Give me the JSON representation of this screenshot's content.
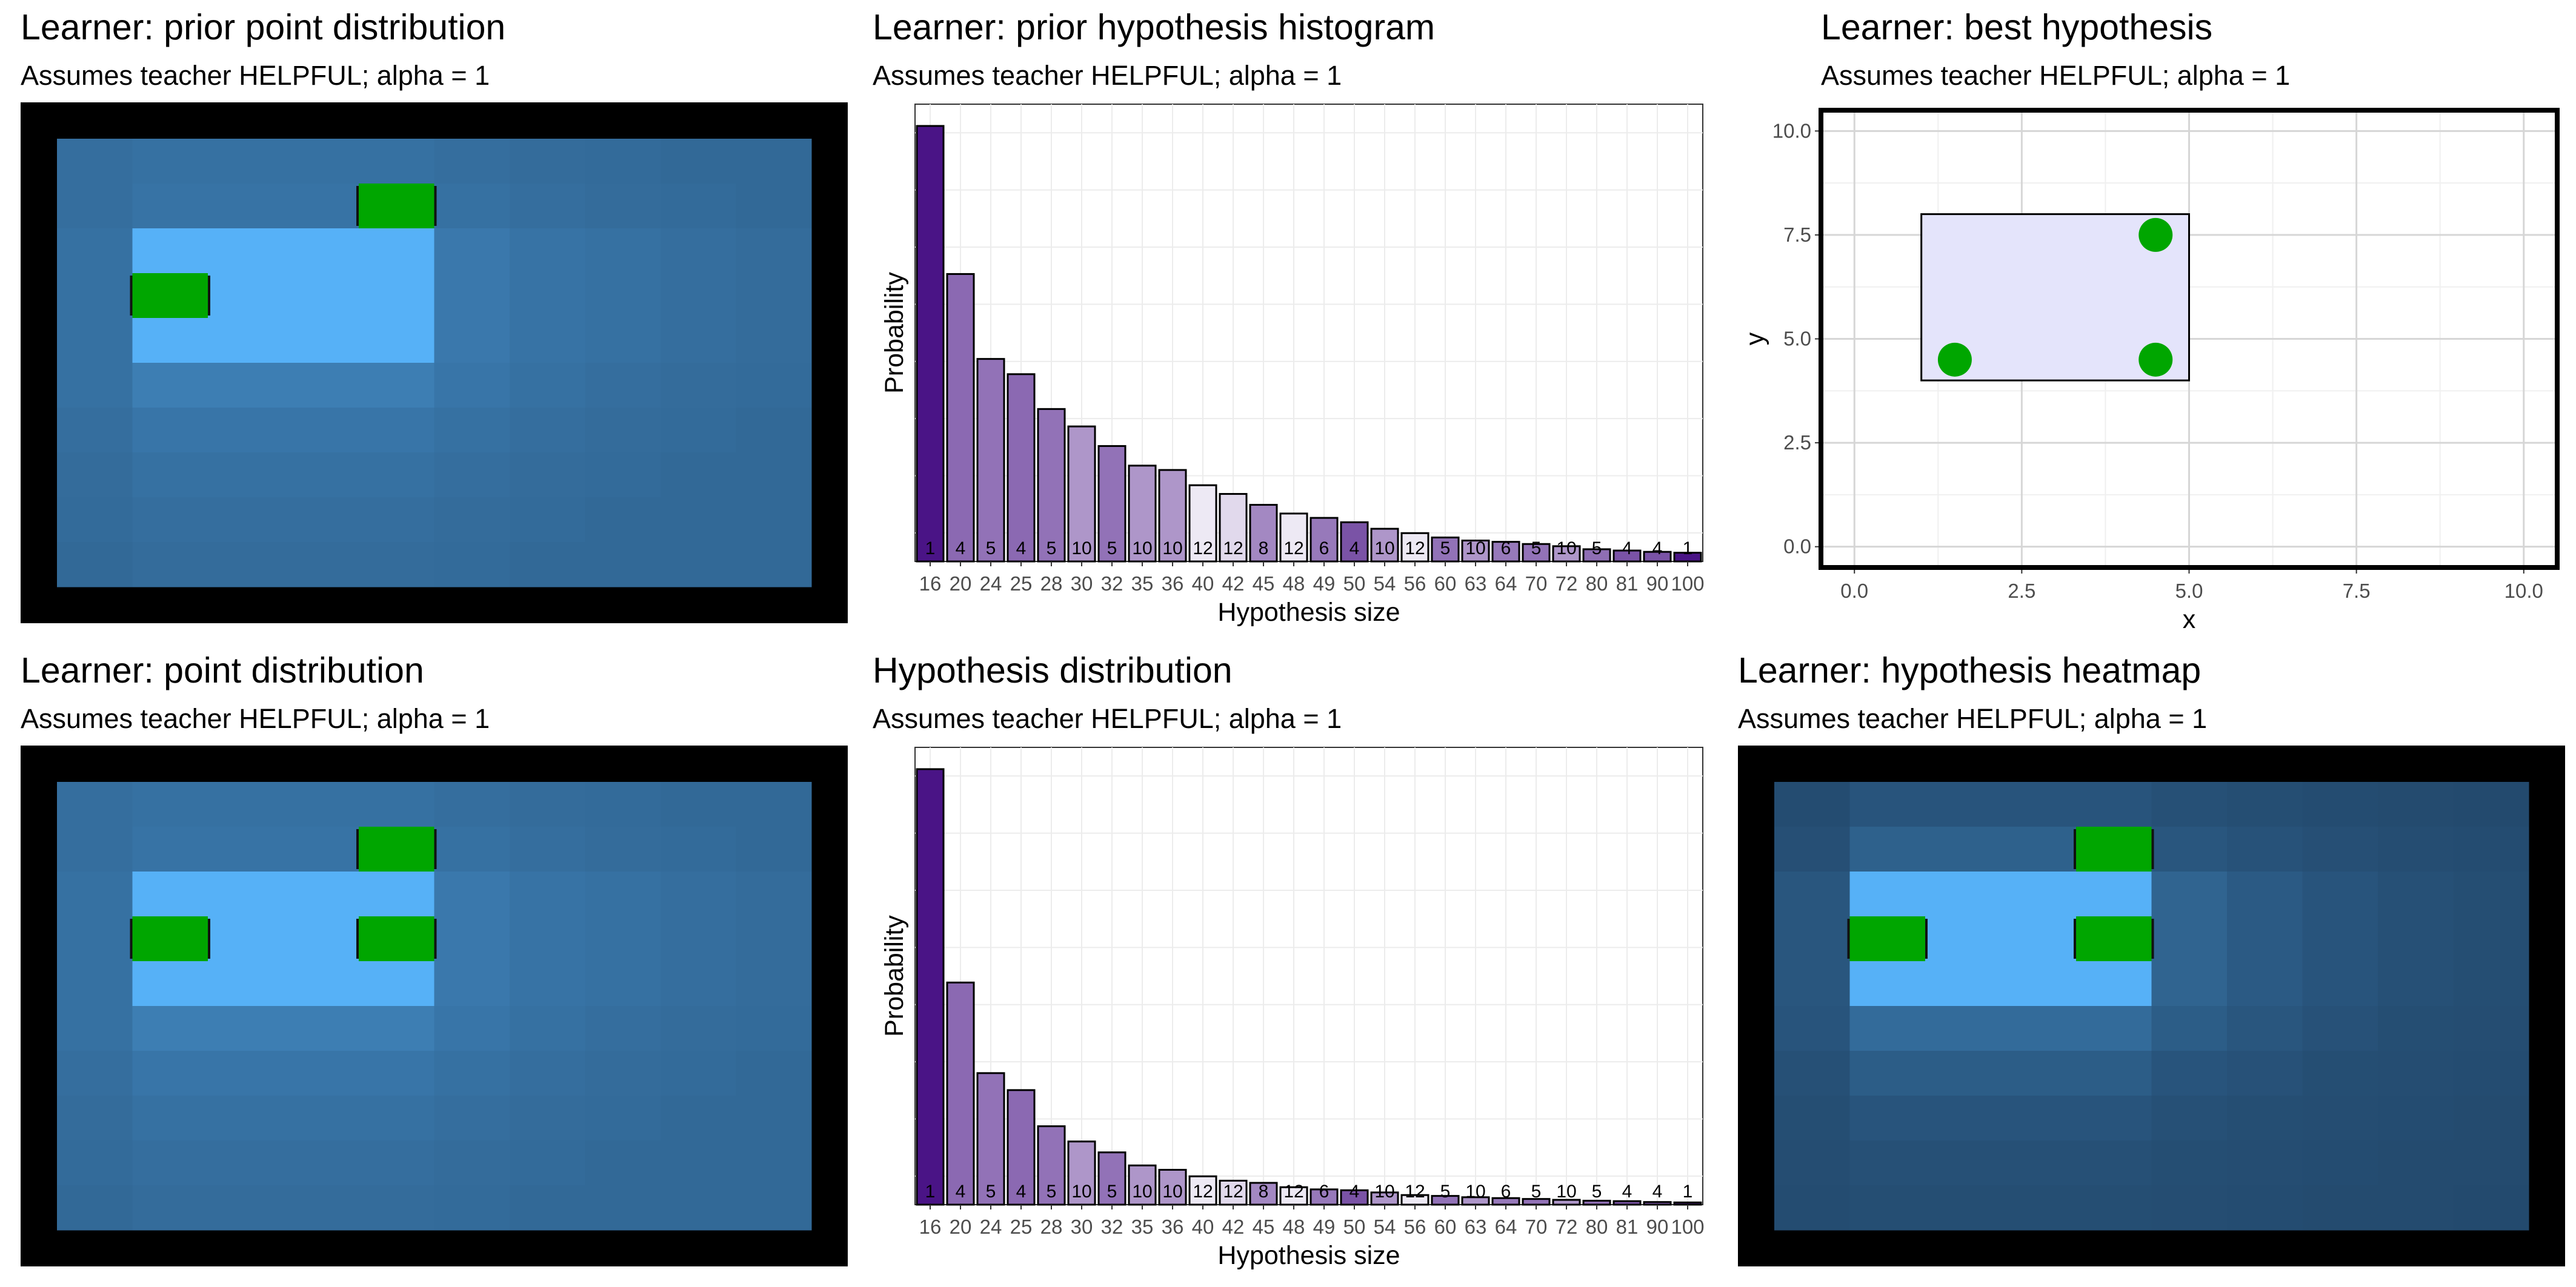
{
  "colors": {
    "heat_low": "#234a6e",
    "heat_high": "#56b1f7",
    "point": "#00a600",
    "bar_low": "#f6f4fa",
    "bar_high": "#4a1486",
    "rect_fill": "#e4e4fb",
    "frame": "#000000"
  },
  "panels": {
    "p1": {
      "title": "Learner: prior point distribution",
      "subtitle": "Assumes teacher HELPFUL; alpha = 1"
    },
    "p2": {
      "title": "Learner: prior hypothesis histogram",
      "subtitle": "Assumes teacher HELPFUL; alpha = 1"
    },
    "p3": {
      "title": "Learner: best hypothesis",
      "subtitle": "Assumes teacher HELPFUL; alpha = 1"
    },
    "p4": {
      "title": "Learner: point distribution",
      "subtitle": "Assumes teacher HELPFUL; alpha = 1"
    },
    "p5": {
      "title": "Hypothesis distribution",
      "subtitle": "Assumes teacher HELPFUL; alpha = 1"
    },
    "p6": {
      "title": "Learner: hypothesis heatmap",
      "subtitle": "Assumes teacher HELPFUL; alpha = 1"
    }
  },
  "chart_data": [
    {
      "id": "p1",
      "type": "heatmap",
      "title": "Learner: prior point distribution",
      "subtitle": "Assumes teacher HELPFUL; alpha = 1",
      "grid_size": [
        10,
        10
      ],
      "scale": [
        0,
        1
      ],
      "values": [
        [
          0.35,
          0.38,
          0.38,
          0.38,
          0.38,
          0.35,
          0.33,
          0.32,
          0.3,
          0.3
        ],
        [
          0.35,
          0.4,
          0.4,
          0.4,
          0.4,
          0.38,
          0.35,
          0.33,
          0.32,
          0.3
        ],
        [
          0.38,
          1.0,
          1.0,
          1.0,
          1.0,
          0.45,
          0.4,
          0.38,
          0.35,
          0.33
        ],
        [
          0.38,
          1.0,
          1.0,
          1.0,
          1.0,
          0.45,
          0.4,
          0.38,
          0.35,
          0.33
        ],
        [
          0.38,
          1.0,
          1.0,
          1.0,
          1.0,
          0.45,
          0.4,
          0.38,
          0.35,
          0.33
        ],
        [
          0.38,
          0.5,
          0.5,
          0.5,
          0.5,
          0.42,
          0.38,
          0.35,
          0.33,
          0.32
        ],
        [
          0.35,
          0.42,
          0.42,
          0.42,
          0.42,
          0.38,
          0.35,
          0.33,
          0.32,
          0.3
        ],
        [
          0.33,
          0.38,
          0.38,
          0.38,
          0.38,
          0.35,
          0.33,
          0.32,
          0.3,
          0.3
        ],
        [
          0.32,
          0.35,
          0.35,
          0.35,
          0.35,
          0.33,
          0.32,
          0.3,
          0.3,
          0.3
        ],
        [
          0.3,
          0.33,
          0.33,
          0.33,
          0.33,
          0.32,
          0.3,
          0.3,
          0.3,
          0.3
        ]
      ],
      "points": [
        {
          "col": 1,
          "row": 3
        },
        {
          "col": 4,
          "row": 1
        }
      ]
    },
    {
      "id": "p2",
      "type": "bar",
      "title": "Learner: prior hypothesis histogram",
      "subtitle": "Assumes teacher HELPFUL; alpha = 1",
      "xlabel": "Hypothesis size",
      "ylabel": "Probability",
      "categories": [
        "16",
        "20",
        "24",
        "25",
        "28",
        "30",
        "32",
        "35",
        "36",
        "40",
        "42",
        "45",
        "48",
        "49",
        "50",
        "54",
        "56",
        "60",
        "63",
        "64",
        "70",
        "72",
        "80",
        "81",
        "90",
        "100"
      ],
      "counts": [
        1,
        4,
        5,
        4,
        5,
        10,
        5,
        10,
        10,
        12,
        12,
        8,
        12,
        6,
        4,
        10,
        12,
        5,
        10,
        6,
        5,
        10,
        5,
        4,
        4,
        1
      ],
      "values": [
        1.0,
        0.66,
        0.465,
        0.43,
        0.35,
        0.31,
        0.265,
        0.22,
        0.21,
        0.175,
        0.155,
        0.13,
        0.11,
        0.1,
        0.09,
        0.075,
        0.065,
        0.055,
        0.048,
        0.045,
        0.04,
        0.035,
        0.028,
        0.025,
        0.022,
        0.02
      ],
      "fill_level": [
        1.0,
        0.62,
        0.58,
        0.62,
        0.58,
        0.42,
        0.58,
        0.42,
        0.42,
        0.05,
        0.12,
        0.48,
        0.05,
        0.55,
        0.72,
        0.42,
        0.05,
        0.58,
        0.42,
        0.55,
        0.58,
        0.42,
        0.6,
        0.72,
        0.72,
        1.0
      ],
      "ylim": [
        0,
        1.05
      ]
    },
    {
      "id": "p3",
      "type": "scatter",
      "title": "Learner: best hypothesis",
      "subtitle": "Assumes teacher HELPFUL; alpha = 1",
      "xlabel": "x",
      "ylabel": "y",
      "xlim": [
        -0.5,
        10.5
      ],
      "ylim": [
        -0.5,
        10.5
      ],
      "x_ticks": [
        "0.0",
        "2.5",
        "5.0",
        "7.5",
        "10.0"
      ],
      "y_ticks": [
        "0.0",
        "2.5",
        "5.0",
        "7.5",
        "10.0"
      ],
      "rectangle": {
        "xmin": 1,
        "xmax": 5,
        "ymin": 4,
        "ymax": 8
      },
      "points": [
        {
          "x": 4.5,
          "y": 7.5
        },
        {
          "x": 1.5,
          "y": 4.5
        },
        {
          "x": 4.5,
          "y": 4.5
        }
      ]
    },
    {
      "id": "p4",
      "type": "heatmap",
      "title": "Learner: point distribution",
      "subtitle": "Assumes teacher HELPFUL; alpha = 1",
      "grid_size": [
        10,
        10
      ],
      "scale": [
        0,
        1
      ],
      "values": [
        [
          0.35,
          0.38,
          0.38,
          0.38,
          0.38,
          0.35,
          0.33,
          0.32,
          0.3,
          0.3
        ],
        [
          0.35,
          0.4,
          0.4,
          0.4,
          0.4,
          0.38,
          0.35,
          0.33,
          0.32,
          0.3
        ],
        [
          0.38,
          1.0,
          1.0,
          1.0,
          1.0,
          0.45,
          0.4,
          0.38,
          0.35,
          0.33
        ],
        [
          0.38,
          1.0,
          1.0,
          1.0,
          1.0,
          0.45,
          0.4,
          0.38,
          0.35,
          0.33
        ],
        [
          0.38,
          1.0,
          1.0,
          1.0,
          1.0,
          0.45,
          0.4,
          0.38,
          0.35,
          0.33
        ],
        [
          0.38,
          0.5,
          0.5,
          0.5,
          0.5,
          0.42,
          0.38,
          0.35,
          0.33,
          0.32
        ],
        [
          0.35,
          0.42,
          0.42,
          0.42,
          0.42,
          0.38,
          0.35,
          0.33,
          0.32,
          0.3
        ],
        [
          0.33,
          0.38,
          0.38,
          0.38,
          0.38,
          0.35,
          0.33,
          0.32,
          0.3,
          0.3
        ],
        [
          0.32,
          0.35,
          0.35,
          0.35,
          0.35,
          0.33,
          0.32,
          0.3,
          0.3,
          0.3
        ],
        [
          0.3,
          0.33,
          0.33,
          0.33,
          0.33,
          0.32,
          0.3,
          0.3,
          0.3,
          0.3
        ]
      ],
      "points": [
        {
          "col": 1,
          "row": 3
        },
        {
          "col": 4,
          "row": 1
        },
        {
          "col": 4,
          "row": 3
        }
      ]
    },
    {
      "id": "p5",
      "type": "bar",
      "title": "Hypothesis distribution",
      "subtitle": "Assumes teacher HELPFUL; alpha = 1",
      "xlabel": "Hypothesis size",
      "ylabel": "Probability",
      "categories": [
        "16",
        "20",
        "24",
        "25",
        "28",
        "30",
        "32",
        "35",
        "36",
        "40",
        "42",
        "45",
        "48",
        "49",
        "50",
        "54",
        "56",
        "60",
        "63",
        "64",
        "70",
        "72",
        "80",
        "81",
        "90",
        "100"
      ],
      "counts": [
        1,
        4,
        5,
        4,
        5,
        10,
        5,
        10,
        10,
        12,
        12,
        8,
        12,
        6,
        4,
        10,
        12,
        5,
        10,
        6,
        5,
        10,
        5,
        4,
        4,
        1
      ],
      "values": [
        1.0,
        0.51,
        0.302,
        0.263,
        0.18,
        0.145,
        0.12,
        0.09,
        0.08,
        0.065,
        0.055,
        0.05,
        0.04,
        0.035,
        0.033,
        0.028,
        0.022,
        0.02,
        0.017,
        0.015,
        0.013,
        0.011,
        0.009,
        0.008,
        0.006,
        0.005
      ],
      "fill_level": [
        1.0,
        0.62,
        0.58,
        0.62,
        0.58,
        0.42,
        0.58,
        0.42,
        0.42,
        0.05,
        0.12,
        0.48,
        0.05,
        0.55,
        0.72,
        0.42,
        0.05,
        0.58,
        0.42,
        0.55,
        0.58,
        0.42,
        0.6,
        0.72,
        0.72,
        1.0
      ],
      "ylim": [
        0,
        1.05
      ]
    },
    {
      "id": "p6",
      "type": "heatmap",
      "title": "Learner: hypothesis heatmap",
      "subtitle": "Assumes teacher HELPFUL; alpha = 1",
      "grid_size": [
        10,
        10
      ],
      "scale": [
        0,
        1
      ],
      "values": [
        [
          0.02,
          0.1,
          0.1,
          0.1,
          0.1,
          0.06,
          0.04,
          0.02,
          0.01,
          0.0
        ],
        [
          0.05,
          0.22,
          0.22,
          0.22,
          0.22,
          0.12,
          0.08,
          0.05,
          0.03,
          0.02
        ],
        [
          0.12,
          1.0,
          1.0,
          1.0,
          1.0,
          0.25,
          0.16,
          0.1,
          0.06,
          0.04
        ],
        [
          0.12,
          1.0,
          1.0,
          1.0,
          1.0,
          0.25,
          0.16,
          0.1,
          0.06,
          0.04
        ],
        [
          0.12,
          1.0,
          1.0,
          1.0,
          1.0,
          0.25,
          0.16,
          0.1,
          0.06,
          0.04
        ],
        [
          0.1,
          0.32,
          0.32,
          0.32,
          0.32,
          0.18,
          0.12,
          0.07,
          0.04,
          0.03
        ],
        [
          0.06,
          0.18,
          0.18,
          0.18,
          0.18,
          0.1,
          0.07,
          0.04,
          0.03,
          0.02
        ],
        [
          0.04,
          0.1,
          0.1,
          0.1,
          0.1,
          0.06,
          0.04,
          0.03,
          0.02,
          0.01
        ],
        [
          0.03,
          0.06,
          0.06,
          0.06,
          0.06,
          0.04,
          0.03,
          0.02,
          0.01,
          0.01
        ],
        [
          0.02,
          0.04,
          0.04,
          0.04,
          0.04,
          0.03,
          0.02,
          0.01,
          0.01,
          0.0
        ]
      ],
      "points": [
        {
          "col": 1,
          "row": 3
        },
        {
          "col": 4,
          "row": 1
        },
        {
          "col": 4,
          "row": 3
        }
      ]
    }
  ]
}
